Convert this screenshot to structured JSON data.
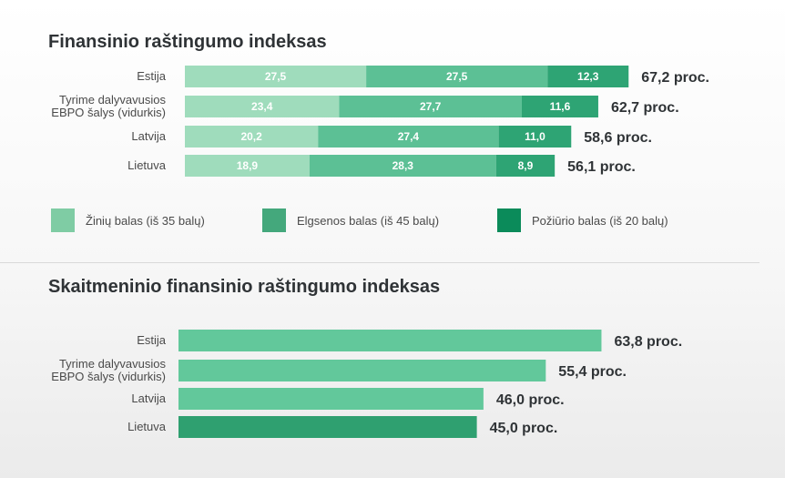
{
  "chart_data": [
    {
      "type": "bar",
      "orientation": "horizontal",
      "stacked": true,
      "title": "Finansinio raštingumo indeksas",
      "categories": [
        "Estija",
        "Tyrime dalyvavusios\nEBPO šalys (vidurkis)",
        "Latvija",
        "Lietuva"
      ],
      "series": [
        {
          "name": "Žinių balas (iš 35 balų)",
          "values": [
            27.5,
            23.4,
            20.2,
            18.9
          ],
          "labels": [
            "27,5",
            "23,4",
            "20,2",
            "18,9"
          ],
          "color": "#9fdcbc"
        },
        {
          "name": "Elgsenos balas (iš 45 balų)",
          "values": [
            27.5,
            27.7,
            27.4,
            28.3
          ],
          "labels": [
            "27,5",
            "27,7",
            "27,4",
            "28,3"
          ],
          "color": "#5cc095"
        },
        {
          "name": "Požiūrio balas (iš 20 balų)",
          "values": [
            12.3,
            11.6,
            11.0,
            8.9
          ],
          "labels": [
            "12,3",
            "11,6",
            "11,0",
            "8,9"
          ],
          "color": "#2ea474"
        }
      ],
      "totals": [
        "67,2 proc.",
        "62,7 proc.",
        "58,6 proc.",
        "56,1 proc."
      ],
      "legend_position": "bottom"
    },
    {
      "type": "bar",
      "orientation": "horizontal",
      "title": "Skaitmeninio finansinio raštingumo indeksas",
      "categories": [
        "Estija",
        "Tyrime dalyvavusios\nEBPO šalys (vidurkis)",
        "Latvija",
        "Lietuva"
      ],
      "values": [
        63.8,
        55.4,
        46.0,
        45.0
      ],
      "labels": [
        "63,8 proc.",
        "55,4 proc.",
        "46,0 proc.",
        "45,0 proc."
      ],
      "colors": [
        "#62c89b",
        "#62c89b",
        "#62c89b",
        "#2fa070"
      ]
    }
  ],
  "legend": [
    {
      "label": "Žinių balas (iš 35 balų)",
      "color": "#7fcca4"
    },
    {
      "label": "Elgsenos balas (iš 45 balų)",
      "color": "#44a87c"
    },
    {
      "label": "Požiūrio balas (iš 20 balų)",
      "color": "#0b8b5a"
    }
  ]
}
